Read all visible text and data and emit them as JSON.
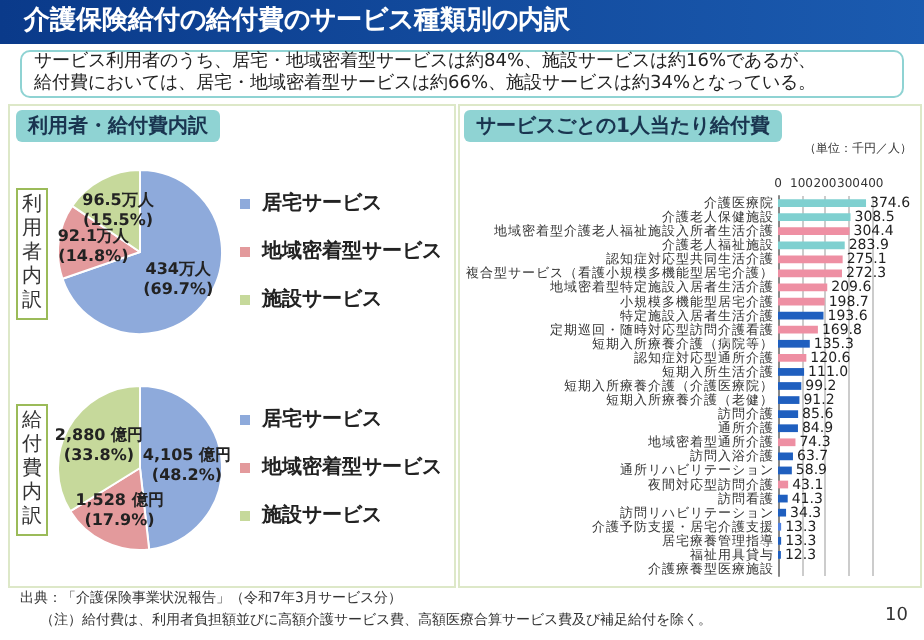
{
  "chart_data": [
    {
      "type": "pie",
      "title": "介護保険給付の給付費のサービス種類別の内訳",
      "subtitle": "サービス利用者のうち、居宅・地域密着型サービスは約84%、施設サービスは約16%であるが、給付費においては、居宅・地域密着型サービスは約66%、施設サービスは約34%となっている。",
      "annotations": [
        "利用者・給付費内訳"
      ],
      "ylabel": "利用者内訳",
      "categories": [
        "居宅サービス",
        "地域密着型サービス",
        "施設サービス"
      ],
      "values": [
        434,
        92.1,
        96.5
      ],
      "value_labels": [
        "434万人\n(69.7%)",
        "92.1万人\n(14.8%)",
        "96.5万人\n(15.5%)"
      ],
      "colors": [
        "#8eaadb",
        "#e39a9c",
        "#c6d99b"
      ],
      "legend": "right"
    },
    {
      "type": "pie",
      "ylabel": "給付費内訳",
      "annotations": [
        "出典：「介護保険事業状況報告」（令和7年3月サービス分）",
        "（注）給付費は、利用者負担額並びに高額介護サービス費、高額医療合算サービス費及び補足給付を除く。"
      ],
      "categories": [
        "居宅サービス",
        "地域密着型サービス",
        "施設サービス"
      ],
      "values": [
        4105,
        1528,
        2880
      ],
      "value_labels": [
        "4,105 億円\n(48.2%)",
        "1,528 億円\n(17.9%)",
        "2,880 億円\n(33.8%)"
      ],
      "colors": [
        "#8eaadb",
        "#e39a9c",
        "#c6d99b"
      ],
      "legend": "right"
    },
    {
      "type": "bar",
      "orientation": "horizontal",
      "title": "サービスごとの1人当たり給付費",
      "annotations": [
        "（単位：千円／人）",
        "10"
      ],
      "categories": [
        "介護医療院",
        "介護老人保健施設",
        "地域密着型介護老人福祉施設入所者生活介護",
        "介護老人福祉施設",
        "認知症対応型共同生活介護",
        "複合型サービス（看護小規模多機能型居宅介護）",
        "地域密着型特定施設入居者生活介護",
        "小規模多機能型居宅介護",
        "特定施設入居者生活介護",
        "定期巡回・随時対応型訪問介護看護",
        "短期入所療養介護（病院等）",
        "認知症対応型通所介護",
        "短期入所生活介護",
        "短期入所療養介護（介護医療院）",
        "短期入所療養介護（老健）",
        "訪問介護",
        "通所介護",
        "地域密着型通所介護",
        "訪問入浴介護",
        "通所リハビリテーション",
        "夜間対応型訪問介護",
        "訪問看護",
        "訪問リハビリテーション",
        "介護予防支援・居宅介護支援",
        "居宅療養管理指導",
        "福祉用具貸与",
        "介護療養型医療施設"
      ],
      "values": [
        374.6,
        308.5,
        304.4,
        283.9,
        275.1,
        272.3,
        209.6,
        198.7,
        193.6,
        169.8,
        135.3,
        120.6,
        111.0,
        99.2,
        91.2,
        85.6,
        84.9,
        74.3,
        63.7,
        58.9,
        43.1,
        41.3,
        34.3,
        13.3,
        13.3,
        12.3,
        null
      ],
      "value_labels": [
        "374.6",
        "308.5",
        "304.4",
        "283.9",
        "275.1",
        "272.3",
        "209.6",
        "198.7",
        "193.6",
        "169.8",
        "135.3",
        "120.6",
        "111.0",
        "99.2",
        "91.2",
        "85.6",
        "84.9",
        "74.3",
        "63.7",
        "58.9",
        "43.1",
        "41.3",
        "34.3",
        "13.3",
        "13.3",
        "12.3",
        null
      ],
      "colors": [
        "#7fd0d0",
        "#7fd0d0",
        "#ee8fa3",
        "#7fd0d0",
        "#ee8fa3",
        "#ee8fa3",
        "#ee8fa3",
        "#ee8fa3",
        "#1f5fbf",
        "#ee8fa3",
        "#1f5fbf",
        "#ee8fa3",
        "#1f5fbf",
        "#1f5fbf",
        "#1f5fbf",
        "#1f5fbf",
        "#1f5fbf",
        "#ee8fa3",
        "#1f5fbf",
        "#1f5fbf",
        "#ee8fa3",
        "#1f5fbf",
        "#1f5fbf",
        "#4f81e0",
        "#1f5fbf",
        "#1f5fbf",
        "#1f5fbf"
      ],
      "xlim": [
        0,
        400
      ],
      "xticks": [
        0,
        100,
        200,
        300,
        400
      ],
      "grid": "x"
    }
  ]
}
